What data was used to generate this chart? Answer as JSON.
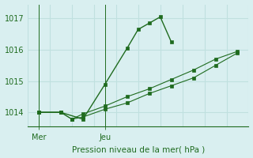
{
  "title": "Pression niveau de la mer( hPa )",
  "background_color": "#d9eff0",
  "grid_color": "#c0e0df",
  "line_color": "#1f6b1f",
  "border_color": "#c8d8d0",
  "yticks": [
    1014,
    1015,
    1016,
    1017
  ],
  "ylim": [
    1013.55,
    1017.45
  ],
  "xlim": [
    0,
    10
  ],
  "mer_x": 0.5,
  "jeu_x": 3.5,
  "line1_x": [
    0.5,
    1.5,
    2.0,
    2.5,
    3.5,
    4.5,
    5.5,
    6.5,
    7.5,
    8.5,
    9.5
  ],
  "line1_y": [
    1014.0,
    1014.0,
    1013.78,
    1013.85,
    1014.1,
    1014.3,
    1014.6,
    1014.85,
    1015.1,
    1015.5,
    1015.9
  ],
  "line2_x": [
    0.5,
    1.5,
    2.0,
    2.5,
    3.5,
    4.5,
    5.5,
    6.5,
    7.5,
    8.5,
    9.5
  ],
  "line2_y": [
    1014.0,
    1014.0,
    1013.78,
    1013.95,
    1014.2,
    1014.5,
    1014.75,
    1015.05,
    1015.35,
    1015.7,
    1015.95
  ],
  "line3_x": [
    0.5,
    1.5,
    2.5,
    3.5,
    4.5,
    5.0,
    5.5,
    6.0,
    6.5
  ],
  "line3_y": [
    1014.0,
    1014.0,
    1013.78,
    1014.9,
    1016.05,
    1016.65,
    1016.85,
    1017.05,
    1016.25
  ],
  "vline_x": [
    0.5,
    3.5
  ]
}
